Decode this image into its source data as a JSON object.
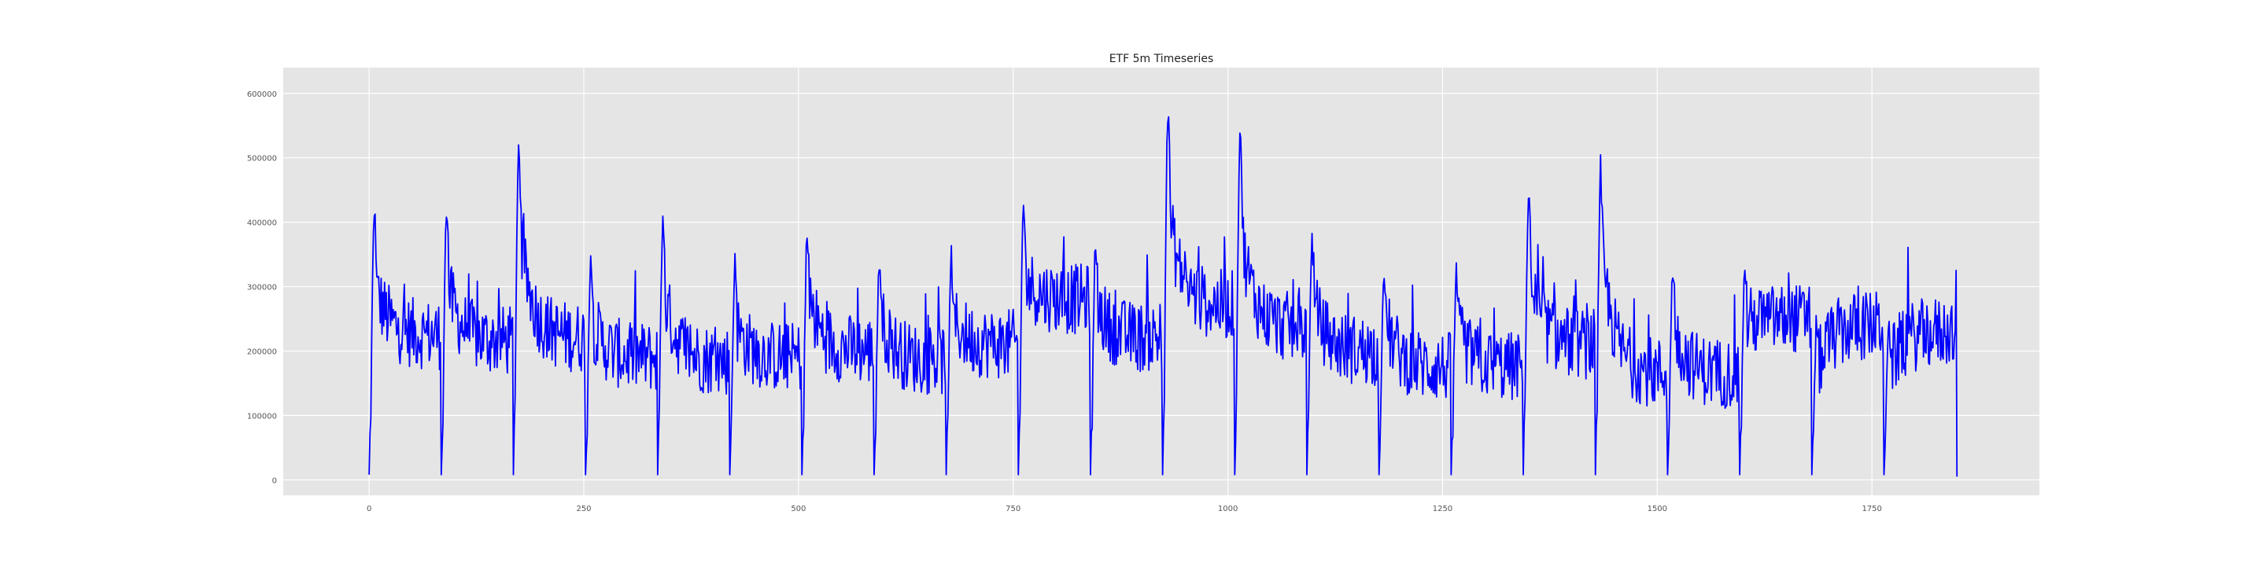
{
  "chart_data": {
    "type": "line",
    "title": "ETF 5m Timeseries",
    "xlabel": "",
    "ylabel": "",
    "xlim": [
      -100,
      1945
    ],
    "ylim": [
      -24000,
      640000
    ],
    "x_ticks": [
      0,
      250,
      500,
      750,
      1000,
      1250,
      1500,
      1750
    ],
    "y_ticks": [
      0,
      100000,
      200000,
      300000,
      400000,
      500000,
      600000
    ],
    "grid": true,
    "style": "ggplot",
    "colors": {
      "background": "#e5e5e5",
      "grid": "#ffffff",
      "line": "#0000ff"
    },
    "series": [
      {
        "x_start": 0,
        "x_end": 1849,
        "points": 1850,
        "cycle_length": 84,
        "cycles": [
          {
            "peak": 450000,
            "level": 225000
          },
          {
            "peak": 450000,
            "level": 215000
          },
          {
            "peak": 560000,
            "level": 220000
          },
          {
            "peak": 370000,
            "level": 190000
          },
          {
            "peak": 430000,
            "level": 185000
          },
          {
            "peak": 360000,
            "level": 190000
          },
          {
            "peak": 430000,
            "level": 200000
          },
          {
            "peak": 380000,
            "level": 185000
          },
          {
            "peak": 380000,
            "level": 210000
          },
          {
            "peak": 480000,
            "level": 280000
          },
          {
            "peak": 415000,
            "level": 220000
          },
          {
            "peak": 612000,
            "level": 270000
          },
          {
            "peak": 575000,
            "level": 235000
          },
          {
            "peak": 415000,
            "level": 200000
          },
          {
            "peak": 370000,
            "level": 175000
          },
          {
            "peak": 350000,
            "level": 175000
          },
          {
            "peak": 470000,
            "level": 210000
          },
          {
            "peak": 520000,
            "level": 165000
          },
          {
            "peak": 350000,
            "level": 165000
          },
          {
            "peak": 375000,
            "level": 250000
          },
          {
            "peak": 280000,
            "level": 240000
          },
          {
            "peak": 280000,
            "level": 230000
          }
        ]
      }
    ]
  }
}
